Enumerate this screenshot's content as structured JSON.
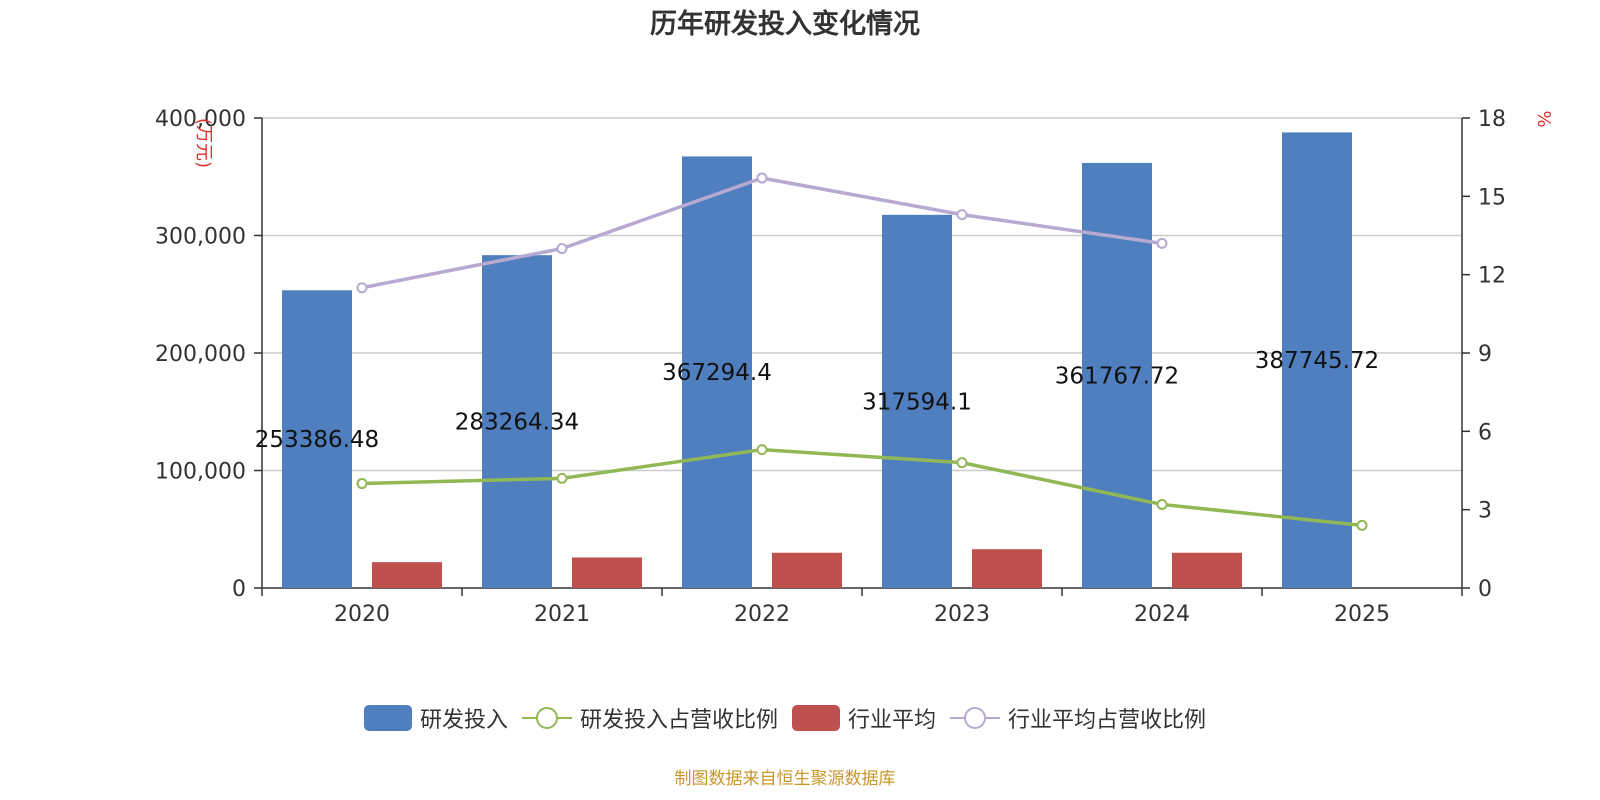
{
  "chart_data": {
    "type": "bar",
    "title": "历年研发投入变化情况",
    "categories": [
      "2020",
      "2021",
      "2022",
      "2023",
      "2024",
      "2025"
    ],
    "y_left": {
      "unit": "万元",
      "ylim": [
        0,
        400000
      ],
      "ticks": [
        "0",
        "100,000",
        "200,000",
        "300,000",
        "400,000"
      ],
      "tick_values": [
        0,
        100000,
        200000,
        300000,
        400000
      ]
    },
    "y_right": {
      "unit": "%",
      "ylim": [
        0,
        18
      ],
      "ticks": [
        "0",
        "3",
        "6",
        "9",
        "12",
        "15",
        "18"
      ],
      "tick_values": [
        0,
        3,
        6,
        9,
        12,
        15,
        18
      ]
    },
    "series": [
      {
        "name": "研发投入",
        "kind": "bar",
        "axis": "left",
        "color": "#4f7fbf",
        "values": [
          253386.48,
          283264.34,
          367294.4,
          317594.1,
          361767.72,
          387745.72
        ],
        "labels": [
          "253386.48",
          "283264.34",
          "367294.4",
          "317594.1",
          "361767.72",
          "387745.72"
        ]
      },
      {
        "name": "研发投入占营收比例",
        "kind": "line",
        "axis": "right",
        "color": "#92b755",
        "values": [
          4.0,
          4.2,
          5.3,
          4.8,
          3.2,
          2.4
        ]
      },
      {
        "name": "行业平均",
        "kind": "bar",
        "axis": "left",
        "color": "#c0504d",
        "values": [
          22000,
          26000,
          30000,
          33000,
          30000,
          null
        ]
      },
      {
        "name": "行业平均占营收比例",
        "kind": "line",
        "axis": "right",
        "color": "#b6a9d2",
        "values": [
          11.5,
          13.0,
          15.7,
          14.3,
          13.2,
          null
        ]
      }
    ],
    "grid": true,
    "legend_position": "bottom"
  },
  "source_text": "制图数据来自恒生聚源数据库"
}
